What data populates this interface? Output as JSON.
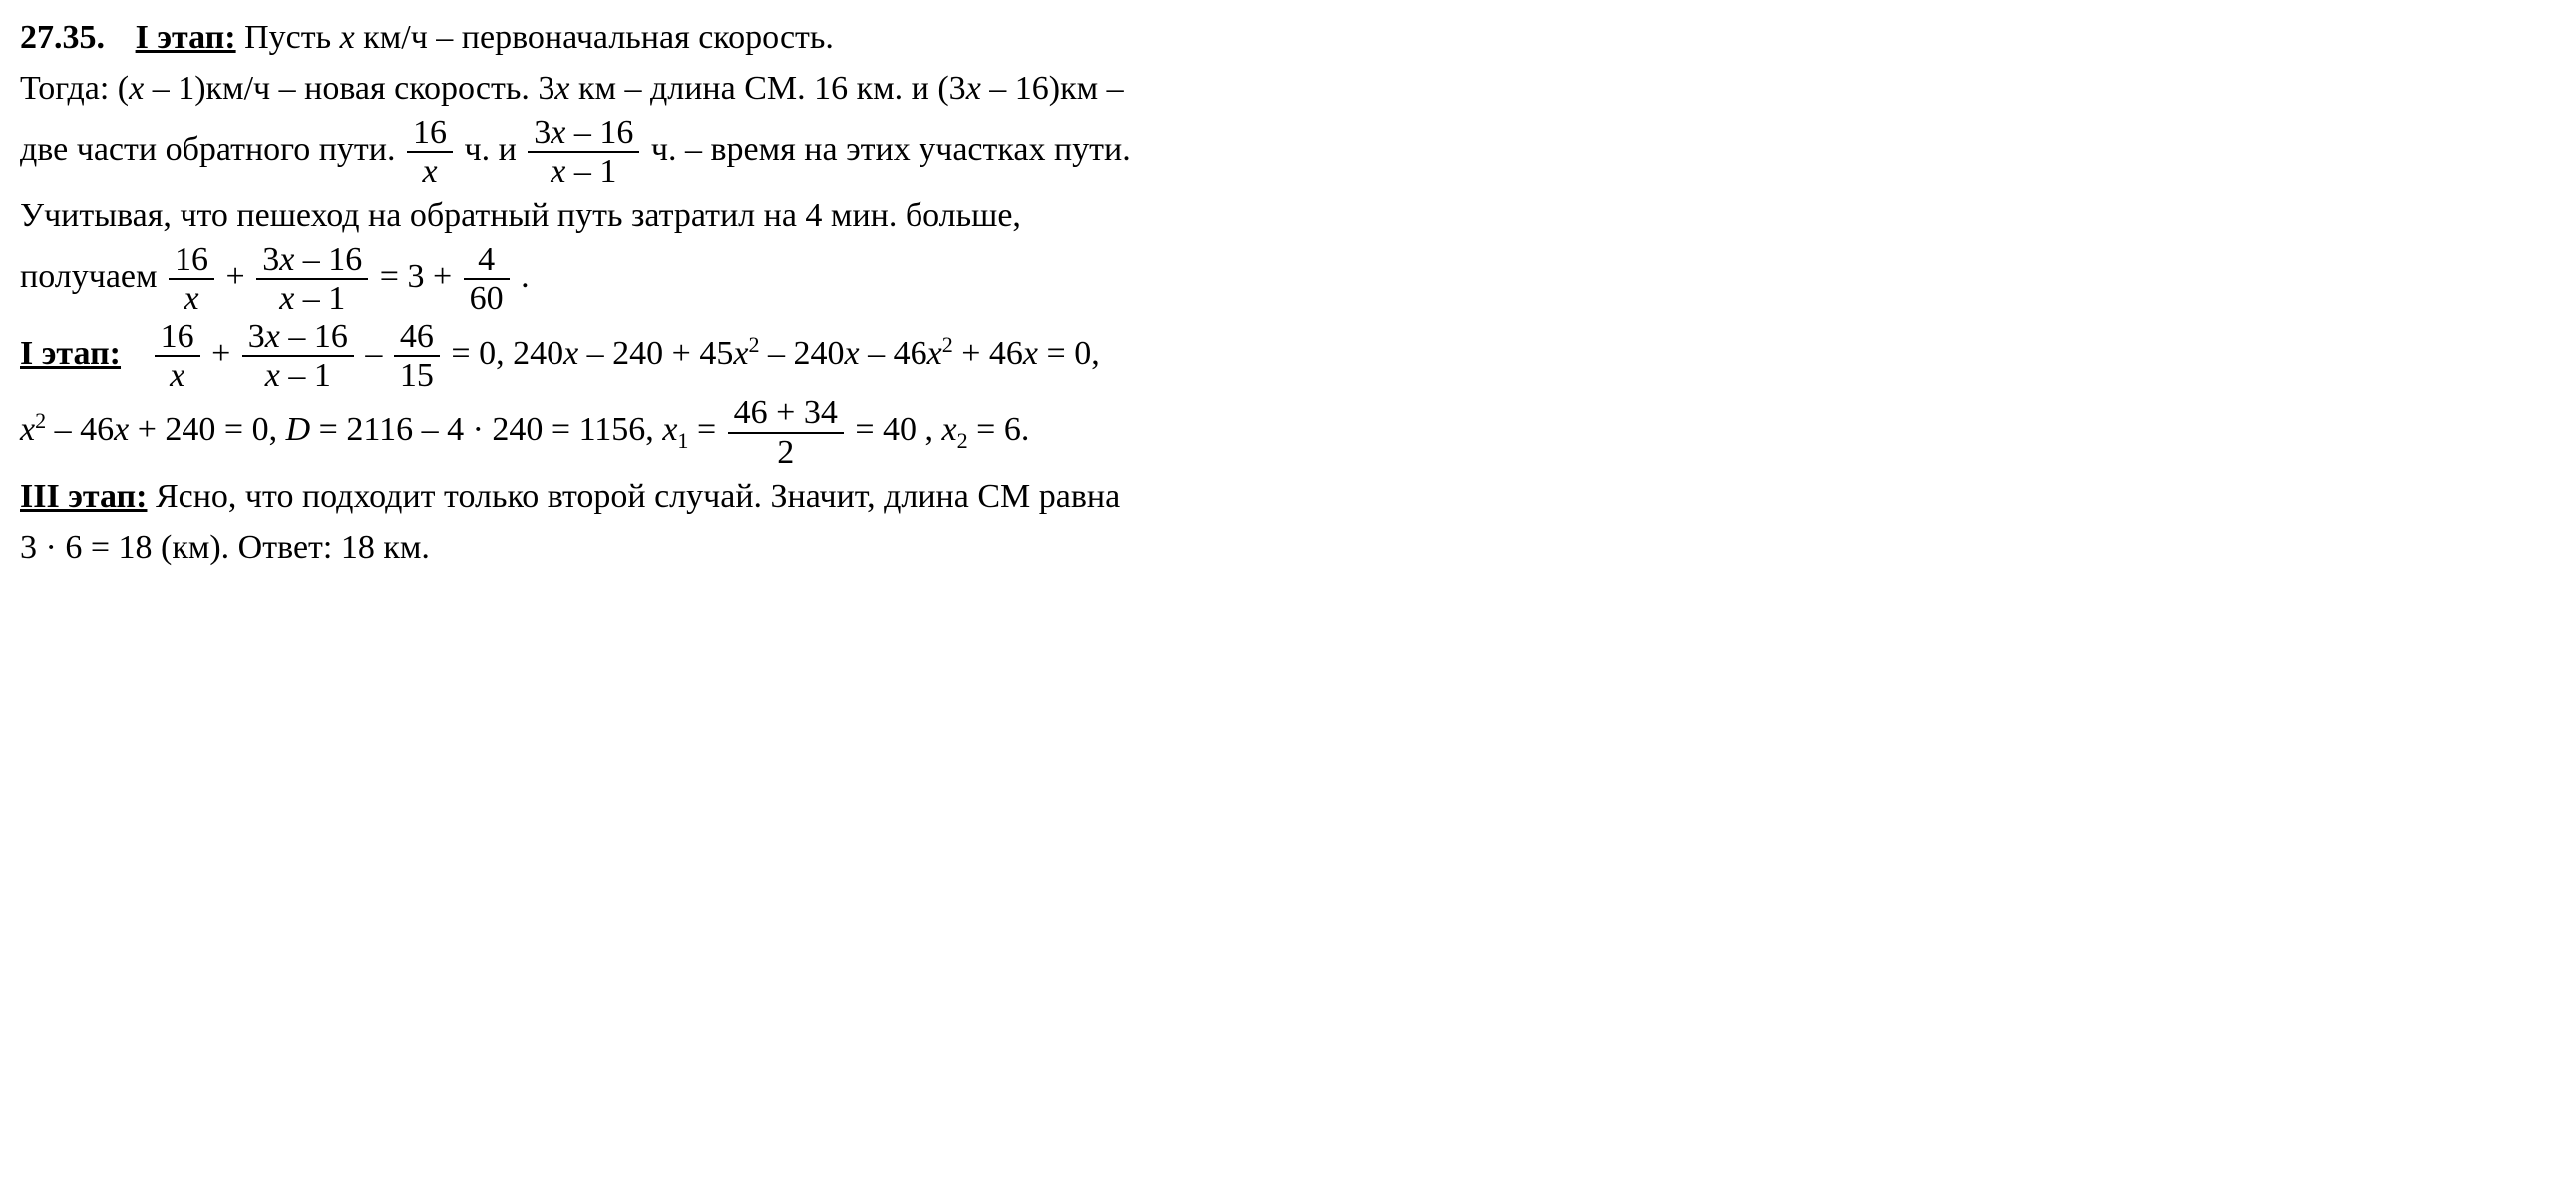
{
  "problem_number": "27.35.",
  "stage1_label": "I этап:",
  "stage1b_label": "I этап:",
  "stage3_label": "III этап:",
  "line1_a": " Пусть ",
  "line1_b": " км/ч – первоначальная скорость.",
  "line2_a": "Тогда: (",
  "line2_b": " – 1)км/ч – новая скорость. 3",
  "line2_c": " км – длина СМ. 16 км. и (3",
  "line2_d": " – 16)км –",
  "line3_a": "две части обратного пути. ",
  "line3_b": " ч. и ",
  "line3_c": " ч. – время на этих участках пути.",
  "line4": "Учитывая, что пешеход на обратный путь затратил на 4 мин. больше,",
  "line5_a": "получаем ",
  "dot": " .",
  "line7_a": " Ясно, что подходит только второй случай. Значит, длина СМ равна",
  "line8": "3 · 6 = 18 (км). Ответ: 18 км.",
  "frac": {
    "n16": "16",
    "dx": "x",
    "n3xm16": "3x – 16",
    "dxm1": "x – 1",
    "n4": "4",
    "d60": "60",
    "n46": "46",
    "d15": "15",
    "n46p34": "46 + 34",
    "d2": "2"
  },
  "eq": {
    "plus": " + ",
    "minus": " – ",
    "eq3p": " = 3 + ",
    "eq0": " = 0, 240",
    "mid1a": " – 240 + 45",
    "mid1b": " – 240",
    "mid1c": " – 46",
    "mid1d": " + 46",
    "tail1": " = 0,",
    "line2a": " – 46",
    "line2b": " + 240 = 0, ",
    "D": "D",
    "line2c": " = 2116 – 4 · 240 = 1156,  ",
    "x1lhs": " = ",
    "x1tail": " = 40 , ",
    "x2tail": " = 6."
  },
  "vars": {
    "x": "x",
    "x1": "x",
    "x2": "x",
    "sub1": "1",
    "sub2": "2",
    "sq": "2"
  }
}
